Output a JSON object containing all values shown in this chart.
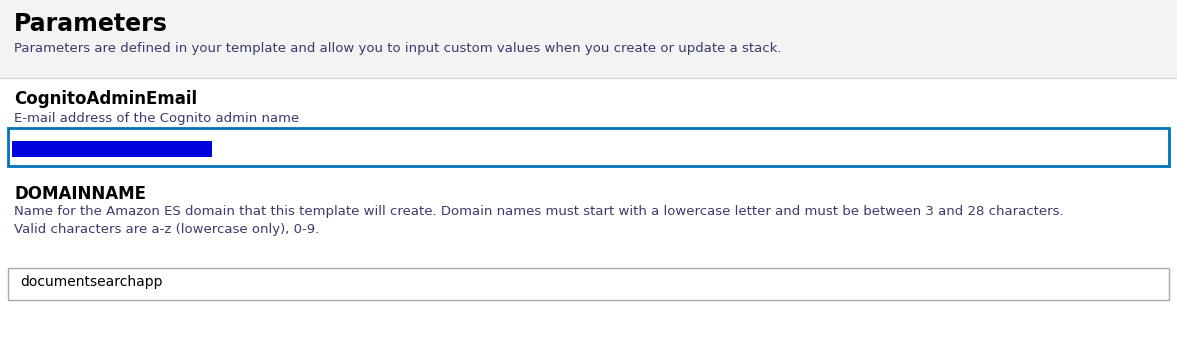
{
  "bg_color": "#f2f3f3",
  "white": "#ffffff",
  "title": "Parameters",
  "title_fontsize": 17,
  "subtitle": "Parameters are defined in your template and allow you to input custom values when you create or update a stack.",
  "subtitle_fontsize": 9.5,
  "subtitle_color": "#3a3a6e",
  "divider_color": "#d5d5d5",
  "field1_label": "CognitoAdminEmail",
  "field1_desc": "E-mail address of the Cognito admin name",
  "field1_label_fontsize": 12,
  "field1_desc_fontsize": 9.5,
  "field1_label_color": "#000000",
  "field1_desc_color": "#3a3a6e",
  "field1_box_border_color": "#0073bb",
  "field1_box_bg": "#ffffff",
  "field1_highlight_color": "#0000dd",
  "field2_label": "DOMAINNAME",
  "field2_desc": "Name for the Amazon ES domain that this template will create. Domain names must start with a lowercase letter and must be between 3 and 28 characters.\nValid characters are a-z (lowercase only), 0-9.",
  "field2_label_fontsize": 12,
  "field2_desc_fontsize": 9.5,
  "field2_label_color": "#000000",
  "field2_desc_color": "#3a3a6e",
  "field2_box_border_color": "#aaaaaa",
  "field2_box_bg": "#ffffff",
  "field2_value": "documentsearchapp",
  "field2_value_fontsize": 10,
  "field2_value_color": "#000000",
  "fig_width": 11.77,
  "fig_height": 3.52,
  "dpi": 100
}
